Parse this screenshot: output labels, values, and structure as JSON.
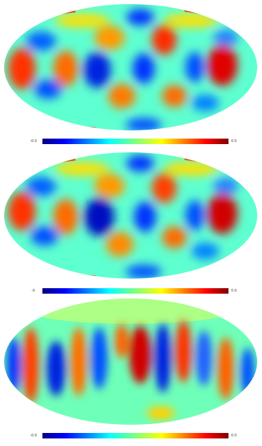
{
  "panels": [
    {
      "name": "map-1",
      "colorbar": {
        "min_label": "-0.0",
        "max_label": "0.0"
      }
    },
    {
      "name": "map-2",
      "colorbar": {
        "min_label": "-0",
        "max_label": "0.0"
      }
    },
    {
      "name": "map-3",
      "colorbar": {
        "min_label": "-0.0",
        "max_label": "0.0"
      }
    }
  ],
  "colormap": [
    "#00007f",
    "#0000ff",
    "#00a0ff",
    "#00ffff",
    "#7fff7f",
    "#ffff00",
    "#ff8000",
    "#ff0000",
    "#7f0000"
  ]
}
